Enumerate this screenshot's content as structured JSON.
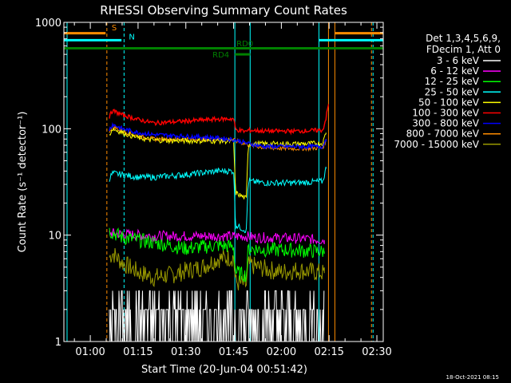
{
  "chart_data": {
    "type": "line",
    "title": "RHESSI Observing Summary Count Rates",
    "xlabel": "Start Time (20-Jun-04 00:51:42)",
    "ylabel": "Count Rate (s⁻¹ detector⁻¹)",
    "yscale": "log",
    "ylim": [
      1,
      1000
    ],
    "xlim_minutes": [
      51.7,
      152
    ],
    "x_ticks": [
      {
        "minute": 60,
        "label": "01:00"
      },
      {
        "minute": 75,
        "label": "01:15"
      },
      {
        "minute": 90,
        "label": "01:30"
      },
      {
        "minute": 105,
        "label": "01:45"
      },
      {
        "minute": 120,
        "label": "02:00"
      },
      {
        "minute": 135,
        "label": "02:15"
      },
      {
        "minute": 150,
        "label": "02:30"
      }
    ],
    "y_ticks": [
      {
        "value": 1,
        "label": "1"
      },
      {
        "value": 10,
        "label": "10"
      },
      {
        "value": 100,
        "label": "100"
      },
      {
        "value": 1000,
        "label": "1000"
      }
    ],
    "legend_header": [
      "Det 1,3,4,5,6,9,",
      "FDecim 1, Att 0"
    ],
    "series": [
      {
        "name": "3 - 6 keV",
        "color": "#ffffff",
        "x": [
          66,
          75,
          85,
          95,
          105,
          112,
          122,
          132,
          133.5
        ],
        "values": [
          1.6,
          1.6,
          1.6,
          1.6,
          1.6,
          1.6,
          1.6,
          1.6,
          1.6
        ]
      },
      {
        "name": "6 - 12 keV",
        "color": "#ff00ff",
        "x": [
          66,
          70,
          80,
          90,
          100,
          105,
          108,
          112,
          115,
          125,
          133.5
        ],
        "values": [
          10.5,
          10.2,
          9.8,
          9.8,
          9.8,
          9.7,
          9.8,
          9.5,
          9.5,
          9.3,
          9.0
        ]
      },
      {
        "name": "12 - 25 keV",
        "color": "#00ff00",
        "x": [
          66,
          70,
          80,
          90,
          100,
          105,
          105.6,
          109,
          109.6,
          115,
          125,
          133.5
        ],
        "values": [
          11,
          9.5,
          8.5,
          7.5,
          8,
          7.8,
          4.5,
          4.2,
          7.5,
          7.3,
          7.2,
          7.0
        ]
      },
      {
        "name": "25 - 50 keV",
        "color": "#00ffff",
        "x": [
          66,
          67,
          70,
          75,
          80,
          90,
          100,
          105,
          105.6,
          109,
          109.6,
          115,
          125,
          133,
          134
        ],
        "values": [
          34,
          38,
          37,
          35,
          35,
          37,
          40,
          40,
          12.5,
          11,
          32,
          31,
          31,
          32,
          42
        ]
      },
      {
        "name": "50 - 100 keV",
        "color": "#ffff00",
        "x": [
          66,
          67,
          70,
          75,
          80,
          90,
          100,
          105,
          105.6,
          109,
          109.6,
          115,
          125,
          133,
          134
        ],
        "values": [
          88,
          100,
          92,
          82,
          78,
          77,
          77,
          76,
          25,
          22,
          72,
          72,
          72,
          73,
          92
        ]
      },
      {
        "name": "100 - 300 keV",
        "color": "#ff0000",
        "x": [
          66,
          67,
          70,
          75,
          80,
          90,
          100,
          105,
          105.6,
          109,
          109.6,
          115,
          125,
          133,
          134,
          134.8
        ],
        "values": [
          130,
          148,
          135,
          122,
          113,
          118,
          123,
          124,
          98,
          94,
          97,
          95,
          95,
          97,
          125,
          170
        ]
      },
      {
        "name": "300 - 800 keV",
        "color": "#0000ff",
        "x": [
          66,
          67,
          70,
          75,
          80,
          90,
          100,
          105,
          110,
          115,
          125,
          133,
          134
        ],
        "values": [
          98,
          110,
          100,
          92,
          88,
          85,
          82,
          79,
          72,
          68,
          68,
          68,
          80
        ]
      },
      {
        "name": "800 - 7000 keV",
        "color": "#ff8c00",
        "x": [
          66,
          67,
          70,
          75,
          80,
          90,
          100,
          105,
          110,
          115,
          125,
          133,
          134
        ],
        "values": [
          95,
          105,
          95,
          85,
          80,
          80,
          80,
          78,
          70,
          66,
          65,
          66,
          78
        ]
      },
      {
        "name": "7000 - 15000 keV",
        "color": "#999900",
        "x": [
          66,
          67,
          70,
          75,
          80,
          85,
          90,
          95,
          100,
          105,
          105.6,
          109,
          109.6,
          115,
          120,
          125,
          133.5
        ],
        "values": [
          6.2,
          6.8,
          5.5,
          4.5,
          4.0,
          4.2,
          4.6,
          5.0,
          6.0,
          6.2,
          3.6,
          3.4,
          5.3,
          4.8,
          4.5,
          4.7,
          4.4
        ]
      }
    ],
    "attenuator_flag": {
      "label": "S",
      "color": "#ff8c00",
      "segments": [
        [
          51.7,
          64.8
        ],
        [
          136.8,
          152
        ]
      ],
      "marker_minute": 65.2
    },
    "saa_flag": {
      "label": "N",
      "color": "#00ffff",
      "segments": [
        [
          51.7,
          69.8
        ],
        [
          131.8,
          152
        ]
      ],
      "marker_minute": 70.6
    },
    "decimation_flag": {
      "color": "#008000",
      "level": 570,
      "segments": [
        [
          51.7,
          152
        ]
      ]
    },
    "rd_flags": [
      {
        "label": "RD0",
        "color": "#008000",
        "start": 105.4,
        "end": 112.2,
        "level": 570
      },
      {
        "label": "RD4",
        "color": "#008000",
        "start": 105.4,
        "end": 110.2,
        "level": 500
      }
    ],
    "vertical_markers": [
      {
        "minute": 52.7,
        "color": "#00ffff",
        "style": "solid"
      },
      {
        "minute": 65.2,
        "color": "#ff8c00",
        "style": "dashed"
      },
      {
        "minute": 70.6,
        "color": "#00ffff",
        "style": "dashed"
      },
      {
        "minute": 105.4,
        "color": "#00ffff",
        "style": "solid"
      },
      {
        "minute": 110.2,
        "color": "#00ffff",
        "style": "solid"
      },
      {
        "minute": 131.8,
        "color": "#00ffff",
        "style": "solid"
      },
      {
        "minute": 134.8,
        "color": "#ff8c00",
        "style": "solid"
      },
      {
        "minute": 136.8,
        "color": "#ff8c00",
        "style": "solid"
      },
      {
        "minute": 148.3,
        "color": "#ff8c00",
        "style": "dashed"
      },
      {
        "minute": 148.8,
        "color": "#00ffff",
        "style": "dashed"
      }
    ],
    "footer_date": "18-Oct-2021 08:15"
  }
}
